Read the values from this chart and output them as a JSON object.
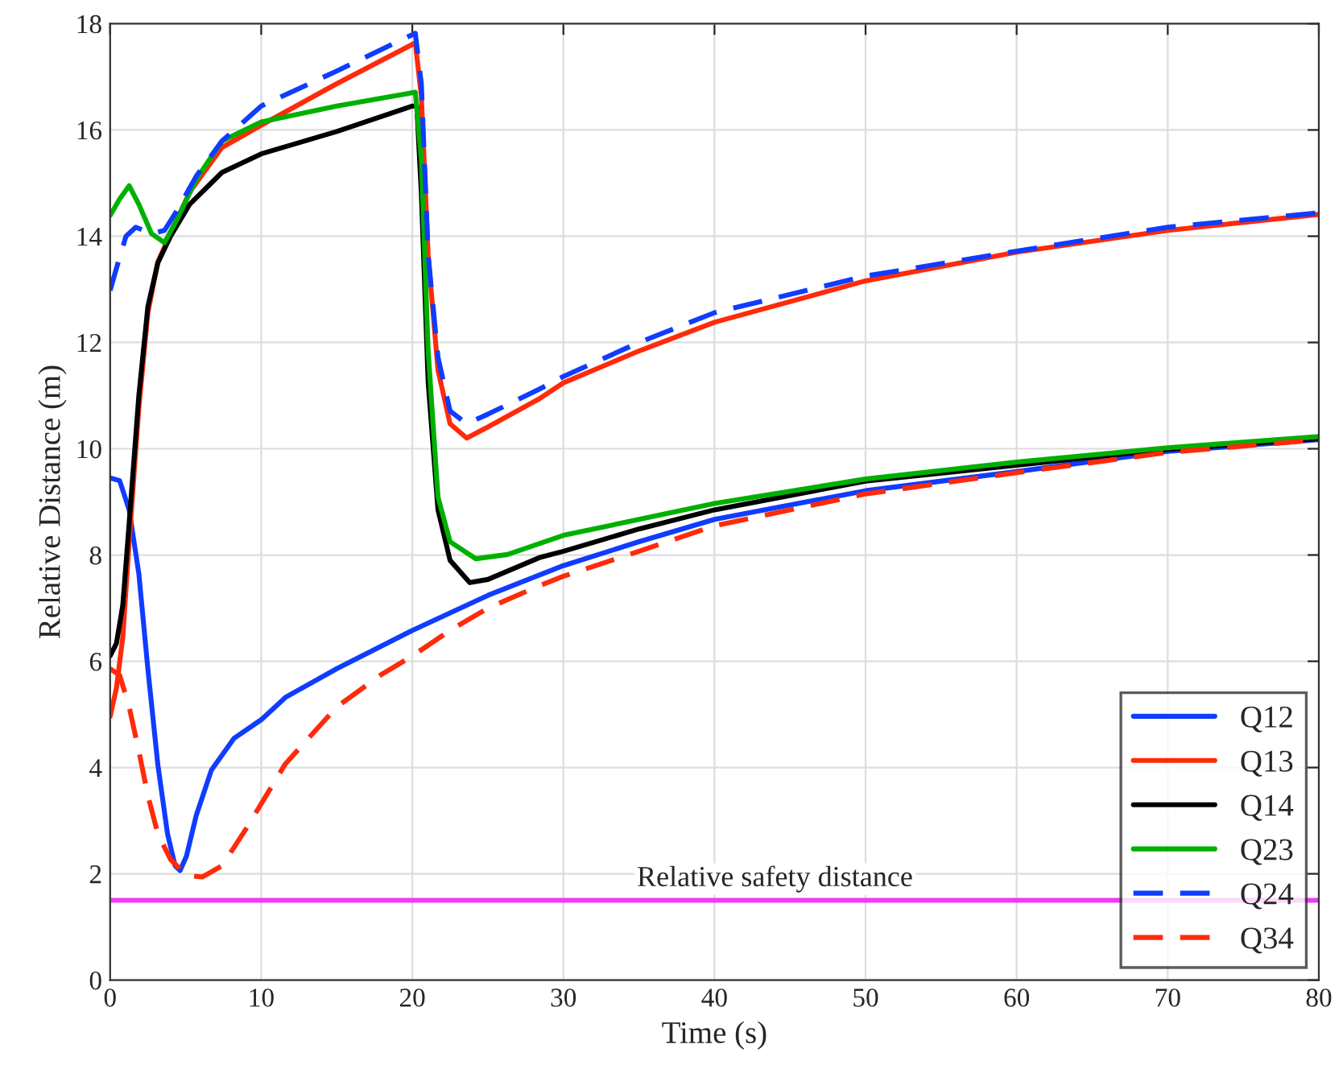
{
  "chart_data": {
    "type": "line",
    "xlabel": "Time (s)",
    "ylabel": "Relative Distance (m)",
    "xlim": [
      0,
      80
    ],
    "ylim": [
      0,
      18
    ],
    "xticks": [
      0,
      10,
      20,
      30,
      40,
      50,
      60,
      70,
      80
    ],
    "yticks": [
      0,
      2,
      4,
      6,
      8,
      10,
      12,
      14,
      16,
      18
    ],
    "grid": true,
    "legend": "bottom right",
    "ref_lines": [
      {
        "axis": "y",
        "value": 1.5,
        "label": "Relative safety distance",
        "color": "#f03cf0",
        "line_style": "solid"
      }
    ],
    "series": [
      {
        "name": "Q12",
        "color": "#0f3cff",
        "line_style": "solid",
        "x": [
          0,
          0.63,
          1.26,
          1.9,
          2.5,
          3.16,
          3.8,
          4.3,
          4.63,
          5.05,
          5.7,
          6.7,
          8.2,
          10,
          11.6,
          15,
          20,
          25,
          30,
          35,
          40,
          50,
          60,
          70,
          80
        ],
        "values": [
          9.45,
          9.4,
          8.85,
          7.65,
          5.85,
          4.05,
          2.75,
          2.15,
          2.06,
          2.33,
          3.1,
          3.95,
          4.55,
          4.9,
          5.32,
          5.86,
          6.58,
          7.24,
          7.8,
          8.25,
          8.67,
          9.21,
          9.57,
          9.95,
          10.17
        ]
      },
      {
        "name": "Q13",
        "color": "#ff2a0a",
        "line_style": "solid",
        "x": [
          0,
          0.42,
          0.84,
          1.26,
          1.9,
          2.5,
          3.16,
          4,
          5.26,
          7.4,
          10,
          15,
          20.2,
          20.6,
          21.05,
          21.7,
          22.5,
          23.6,
          25,
          28.4,
          30,
          35,
          40,
          50,
          60,
          70,
          80
        ],
        "values": [
          4.96,
          5.5,
          6.46,
          8.25,
          10.77,
          12.56,
          13.52,
          14.05,
          14.83,
          15.67,
          16.09,
          16.87,
          17.64,
          16.63,
          13.64,
          11.48,
          10.47,
          10.2,
          10.41,
          10.94,
          11.24,
          11.84,
          12.38,
          13.16,
          13.7,
          14.11,
          14.41
        ]
      },
      {
        "name": "Q14",
        "color": "#000000",
        "line_style": "solid",
        "x": [
          0,
          0.42,
          0.84,
          1.26,
          1.9,
          2.5,
          3.16,
          4,
          5.26,
          7.4,
          10,
          15,
          20,
          20.3,
          20.6,
          21.05,
          21.7,
          22.5,
          23.8,
          25,
          28.4,
          30,
          35,
          40,
          50,
          60,
          70,
          80
        ],
        "values": [
          6.1,
          6.34,
          7.06,
          8.6,
          11.0,
          12.68,
          13.5,
          14.0,
          14.6,
          15.2,
          15.55,
          15.97,
          16.45,
          16.45,
          14.8,
          11.25,
          8.85,
          7.9,
          7.48,
          7.54,
          7.95,
          8.07,
          8.49,
          8.85,
          9.39,
          9.69,
          9.99,
          10.19
        ]
      },
      {
        "name": "Q23",
        "color": "#00b000",
        "line_style": "solid",
        "x": [
          0,
          0.63,
          1.26,
          1.9,
          2.74,
          3.6,
          4.4,
          5.7,
          7.4,
          10,
          15,
          20.2,
          20.6,
          21.05,
          21.7,
          22.5,
          24.2,
          26.3,
          30,
          35,
          40,
          50,
          60,
          70,
          80
        ],
        "values": [
          14.39,
          14.7,
          14.95,
          14.6,
          14.05,
          13.88,
          14.3,
          15.07,
          15.79,
          16.15,
          16.45,
          16.71,
          15.43,
          11.84,
          9.09,
          8.25,
          7.93,
          8.01,
          8.37,
          8.67,
          8.97,
          9.43,
          9.75,
          10.02,
          10.23
        ]
      },
      {
        "name": "Q24",
        "color": "#0f3cff",
        "line_style": "dashed",
        "x": [
          0,
          0.42,
          1.05,
          1.7,
          2.74,
          3.6,
          4.4,
          5.7,
          7.4,
          10,
          15,
          20.2,
          20.6,
          21.05,
          21.7,
          22.5,
          23.6,
          25,
          28.4,
          30,
          35,
          40,
          50,
          60,
          70,
          80
        ],
        "values": [
          12.98,
          13.4,
          14.0,
          14.17,
          14.05,
          14.11,
          14.47,
          15.13,
          15.79,
          16.45,
          17.11,
          17.82,
          16.87,
          13.64,
          11.72,
          10.71,
          10.47,
          10.65,
          11.12,
          11.36,
          12.0,
          12.56,
          13.25,
          13.72,
          14.17,
          14.44
        ]
      },
      {
        "name": "Q34",
        "color": "#ff2a0a",
        "line_style": "dashed",
        "x": [
          0,
          0.63,
          1.26,
          1.9,
          2.5,
          3.16,
          4,
          5.05,
          6.1,
          7.4,
          9.05,
          11.6,
          15,
          17.9,
          20,
          22.5,
          25,
          28.4,
          30,
          35,
          40,
          50,
          60,
          70,
          80
        ],
        "values": [
          5.86,
          5.74,
          5.14,
          4.31,
          3.47,
          2.75,
          2.27,
          1.97,
          1.94,
          2.15,
          2.87,
          4.07,
          5.14,
          5.74,
          6.1,
          6.58,
          7.0,
          7.42,
          7.6,
          8.07,
          8.55,
          9.15,
          9.55,
          9.93,
          10.17
        ]
      }
    ]
  }
}
